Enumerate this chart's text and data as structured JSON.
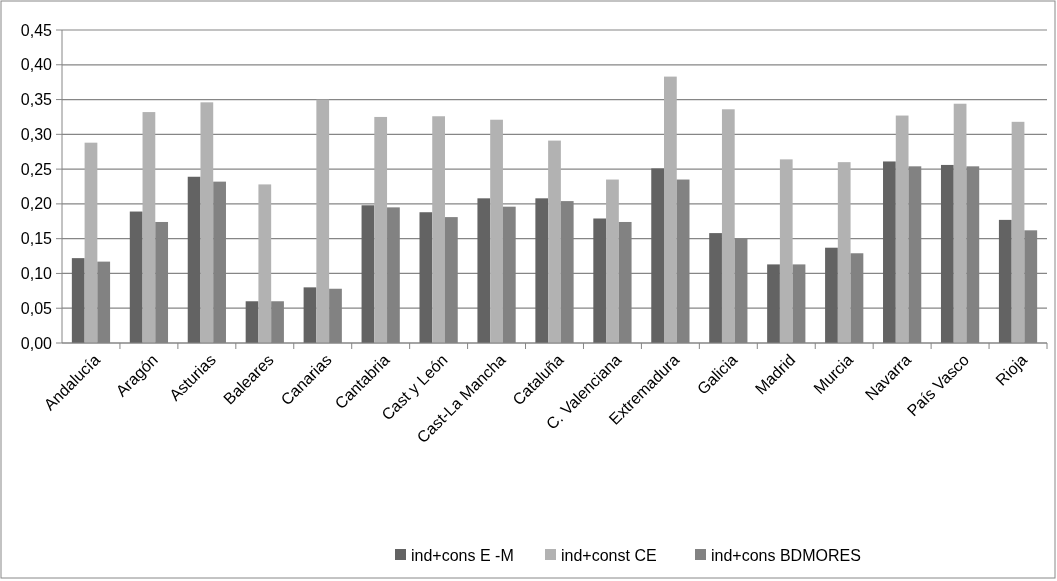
{
  "chart_data": {
    "type": "bar",
    "categories": [
      "Andalucía",
      "Aragón",
      "Asturias",
      "Baleares",
      "Canarias",
      "Cantabria",
      "Cast y León",
      "Cast-La Mancha",
      "Cataluña",
      "C. Valenciana",
      "Extremadura",
      "Galicia",
      "Madrid",
      "Murcia",
      "Navarra",
      "País Vasco",
      "Rioja"
    ],
    "series": [
      {
        "name": "ind+cons E -M",
        "color": "#636363",
        "values": [
          0.122,
          0.189,
          0.239,
          0.06,
          0.08,
          0.198,
          0.188,
          0.208,
          0.208,
          0.179,
          0.251,
          0.158,
          0.113,
          0.137,
          0.261,
          0.256,
          0.177
        ]
      },
      {
        "name": "ind+const CE",
        "color": "#b2b2b2",
        "values": [
          0.288,
          0.332,
          0.346,
          0.228,
          0.35,
          0.325,
          0.326,
          0.321,
          0.291,
          0.235,
          0.383,
          0.336,
          0.264,
          0.26,
          0.327,
          0.344,
          0.318
        ]
      },
      {
        "name": "ind+cons BDMORES",
        "color": "#828282",
        "values": [
          0.117,
          0.174,
          0.232,
          0.06,
          0.078,
          0.195,
          0.181,
          0.196,
          0.204,
          0.174,
          0.235,
          0.15,
          0.113,
          0.129,
          0.254,
          0.254,
          0.162
        ]
      }
    ],
    "ylim": [
      0,
      0.45
    ],
    "yticks": [
      {
        "value": 0,
        "label": "0,00"
      },
      {
        "value": 0.05,
        "label": "0,05"
      },
      {
        "value": 0.1,
        "label": "0,10"
      },
      {
        "value": 0.15,
        "label": "0,15"
      },
      {
        "value": 0.2,
        "label": "0,20"
      },
      {
        "value": 0.25,
        "label": "0,25"
      },
      {
        "value": 0.3,
        "label": "0,30"
      },
      {
        "value": 0.35,
        "label": "0,35"
      },
      {
        "value": 0.4,
        "label": "0,40"
      },
      {
        "value": 0.45,
        "label": "0,45"
      }
    ],
    "grid": "y",
    "legend": "bottom"
  }
}
